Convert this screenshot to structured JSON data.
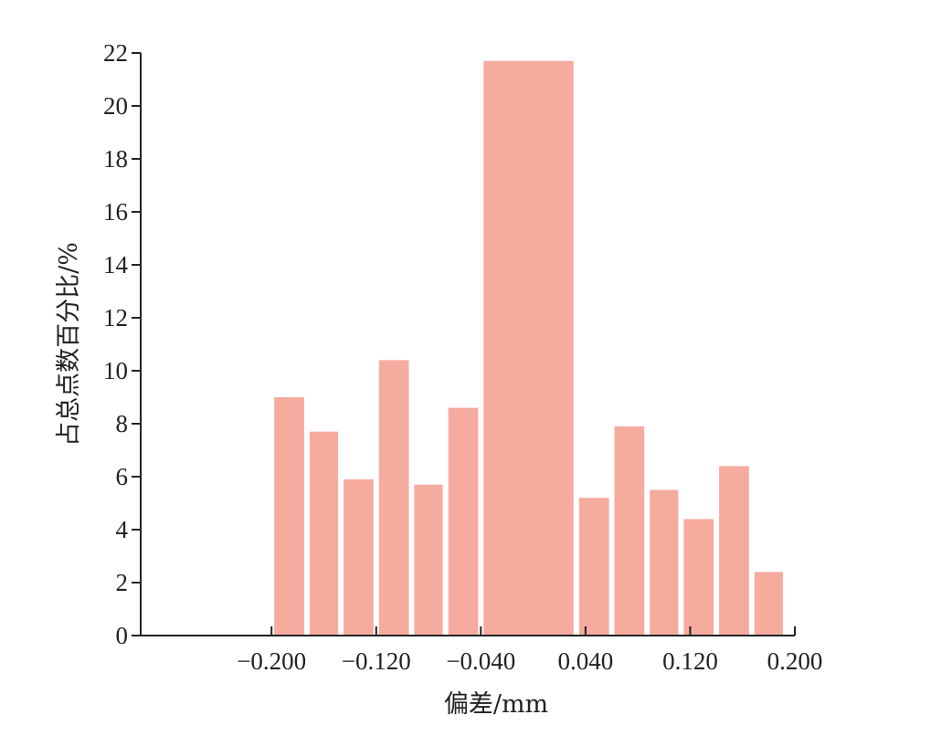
{
  "chart_data": {
    "type": "bar",
    "title": "",
    "xlabel": "偏差/mm",
    "ylabel": "占总点数百分比/%",
    "xlim": [
      -0.3,
      0.2
    ],
    "ylim": [
      0,
      22
    ],
    "x_ticks": [
      -0.2,
      -0.12,
      -0.04,
      0.04,
      0.12,
      0.2
    ],
    "x_tick_labels": [
      "−0.200",
      "−0.120",
      "−0.040",
      "0.040",
      "0.120",
      "0.200"
    ],
    "y_ticks": [
      0,
      2,
      4,
      6,
      8,
      10,
      12,
      14,
      16,
      18,
      20,
      22
    ],
    "y_tick_labels": [
      "0",
      "2",
      "4",
      "6",
      "8",
      "10",
      "12",
      "14",
      "16",
      "18",
      "20",
      "22"
    ],
    "bins": [
      {
        "x0": -0.2,
        "x1": -0.173,
        "value": 9.0
      },
      {
        "x0": -0.173,
        "x1": -0.147,
        "value": 7.7
      },
      {
        "x0": -0.147,
        "x1": -0.12,
        "value": 5.9
      },
      {
        "x0": -0.12,
        "x1": -0.093,
        "value": 10.4
      },
      {
        "x0": -0.093,
        "x1": -0.067,
        "value": 5.7
      },
      {
        "x0": -0.067,
        "x1": -0.04,
        "value": 8.6
      },
      {
        "x0": -0.04,
        "x1": 0.033,
        "value": 21.7
      },
      {
        "x0": 0.033,
        "x1": 0.06,
        "value": 5.2
      },
      {
        "x0": 0.06,
        "x1": 0.087,
        "value": 7.9
      },
      {
        "x0": 0.087,
        "x1": 0.113,
        "value": 5.5
      },
      {
        "x0": 0.113,
        "x1": 0.14,
        "value": 4.4
      },
      {
        "x0": 0.14,
        "x1": 0.167,
        "value": 6.4
      },
      {
        "x0": 0.167,
        "x1": 0.193,
        "value": 2.4
      }
    ],
    "bar_color": "#f6ab9f",
    "grid": false,
    "legend": "none"
  }
}
